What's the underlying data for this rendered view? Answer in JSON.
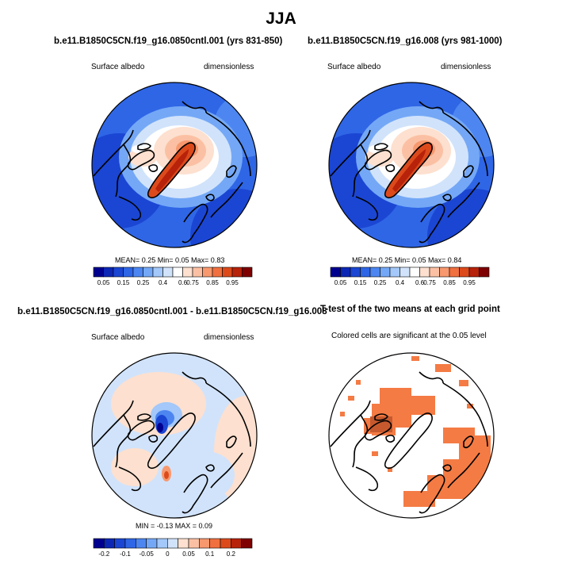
{
  "figure": {
    "title": "JJA"
  },
  "panels": {
    "p1": {
      "title": "b.e11.B1850C5CN.f19_g16.0850cntl.001 (yrs 831-850)",
      "left_label": "Surface albedo",
      "right_label": "dimensionless",
      "stats": "MEAN=  0.25  Min=  0.05  Max=  0.83"
    },
    "p2": {
      "title": "b.e11.B1850C5CN.f19_g16.008 (yrs 981-1000)",
      "left_label": "Surface albedo",
      "right_label": "dimensionless",
      "stats": "MEAN=  0.25  Min=  0.05  Max=  0.84"
    },
    "p3": {
      "title": "b.e11.B1850C5CN.f19_g16.0850cntl.001 - b.e11.B1850C5CN.f19_g16.008",
      "left_label": "Surface albedo",
      "right_label": "dimensionless",
      "stats": "MIN =  -0.13  MAX =  0.09"
    },
    "p4": {
      "title": "T-test of the two means at each grid point",
      "subtitle": "Colored cells are significant at the 0.05 level"
    }
  },
  "chart_data": [
    {
      "type": "heatmap",
      "projection": "north-polar-stereographic",
      "variable": "Surface albedo",
      "units": "dimensionless",
      "mean": 0.25,
      "min": 0.05,
      "max": 0.83,
      "colorbar": {
        "levels": [
          0.05,
          0.1,
          0.15,
          0.2,
          0.25,
          0.3,
          0.4,
          0.5,
          0.6,
          0.7,
          0.75,
          0.8,
          0.85,
          0.9,
          0.95
        ],
        "tick_labels": [
          "0.05",
          "0.15",
          "0.25",
          "0.4",
          "0.6",
          "0.75",
          "0.85",
          "0.95"
        ],
        "colors": [
          "#00008f",
          "#0d27b5",
          "#1b46d3",
          "#2f66e6",
          "#4d86f0",
          "#74a8f6",
          "#a3c8f9",
          "#d1e3fb",
          "#ffffff",
          "#fde0cf",
          "#fbc0a3",
          "#f7986e",
          "#f1703f",
          "#dc4a1c",
          "#b7220a",
          "#7e0000"
        ]
      }
    },
    {
      "type": "heatmap",
      "projection": "north-polar-stereographic",
      "variable": "Surface albedo",
      "units": "dimensionless",
      "mean": 0.25,
      "min": 0.05,
      "max": 0.84,
      "colorbar": {
        "levels": [
          0.05,
          0.1,
          0.15,
          0.2,
          0.25,
          0.3,
          0.4,
          0.5,
          0.6,
          0.7,
          0.75,
          0.8,
          0.85,
          0.9,
          0.95
        ],
        "tick_labels": [
          "0.05",
          "0.15",
          "0.25",
          "0.4",
          "0.6",
          "0.75",
          "0.85",
          "0.95"
        ],
        "colors": [
          "#00008f",
          "#0d27b5",
          "#1b46d3",
          "#2f66e6",
          "#4d86f0",
          "#74a8f6",
          "#a3c8f9",
          "#d1e3fb",
          "#ffffff",
          "#fde0cf",
          "#fbc0a3",
          "#f7986e",
          "#f1703f",
          "#dc4a1c",
          "#b7220a",
          "#7e0000"
        ]
      }
    },
    {
      "type": "heatmap",
      "projection": "north-polar-stereographic",
      "variable": "Surface albedo difference",
      "units": "dimensionless",
      "min": -0.13,
      "max": 0.09,
      "colorbar": {
        "tick_labels": [
          "-0.2",
          "-0.1",
          "-0.05",
          "0",
          "0.05",
          "0.1",
          "0.2"
        ],
        "colors": [
          "#00008f",
          "#0d27b5",
          "#1b46d3",
          "#2f66e6",
          "#4d86f0",
          "#74a8f6",
          "#a3c8f9",
          "#d1e3fb",
          "#fde0cf",
          "#fbc0a3",
          "#f7986e",
          "#f1703f",
          "#dc4a1c",
          "#b7220a",
          "#7e0000"
        ]
      }
    },
    {
      "type": "heatmap",
      "projection": "north-polar-stereographic",
      "variable": "T-test significance",
      "significance_level": 0.05,
      "significant_color": "#f47b44"
    }
  ]
}
